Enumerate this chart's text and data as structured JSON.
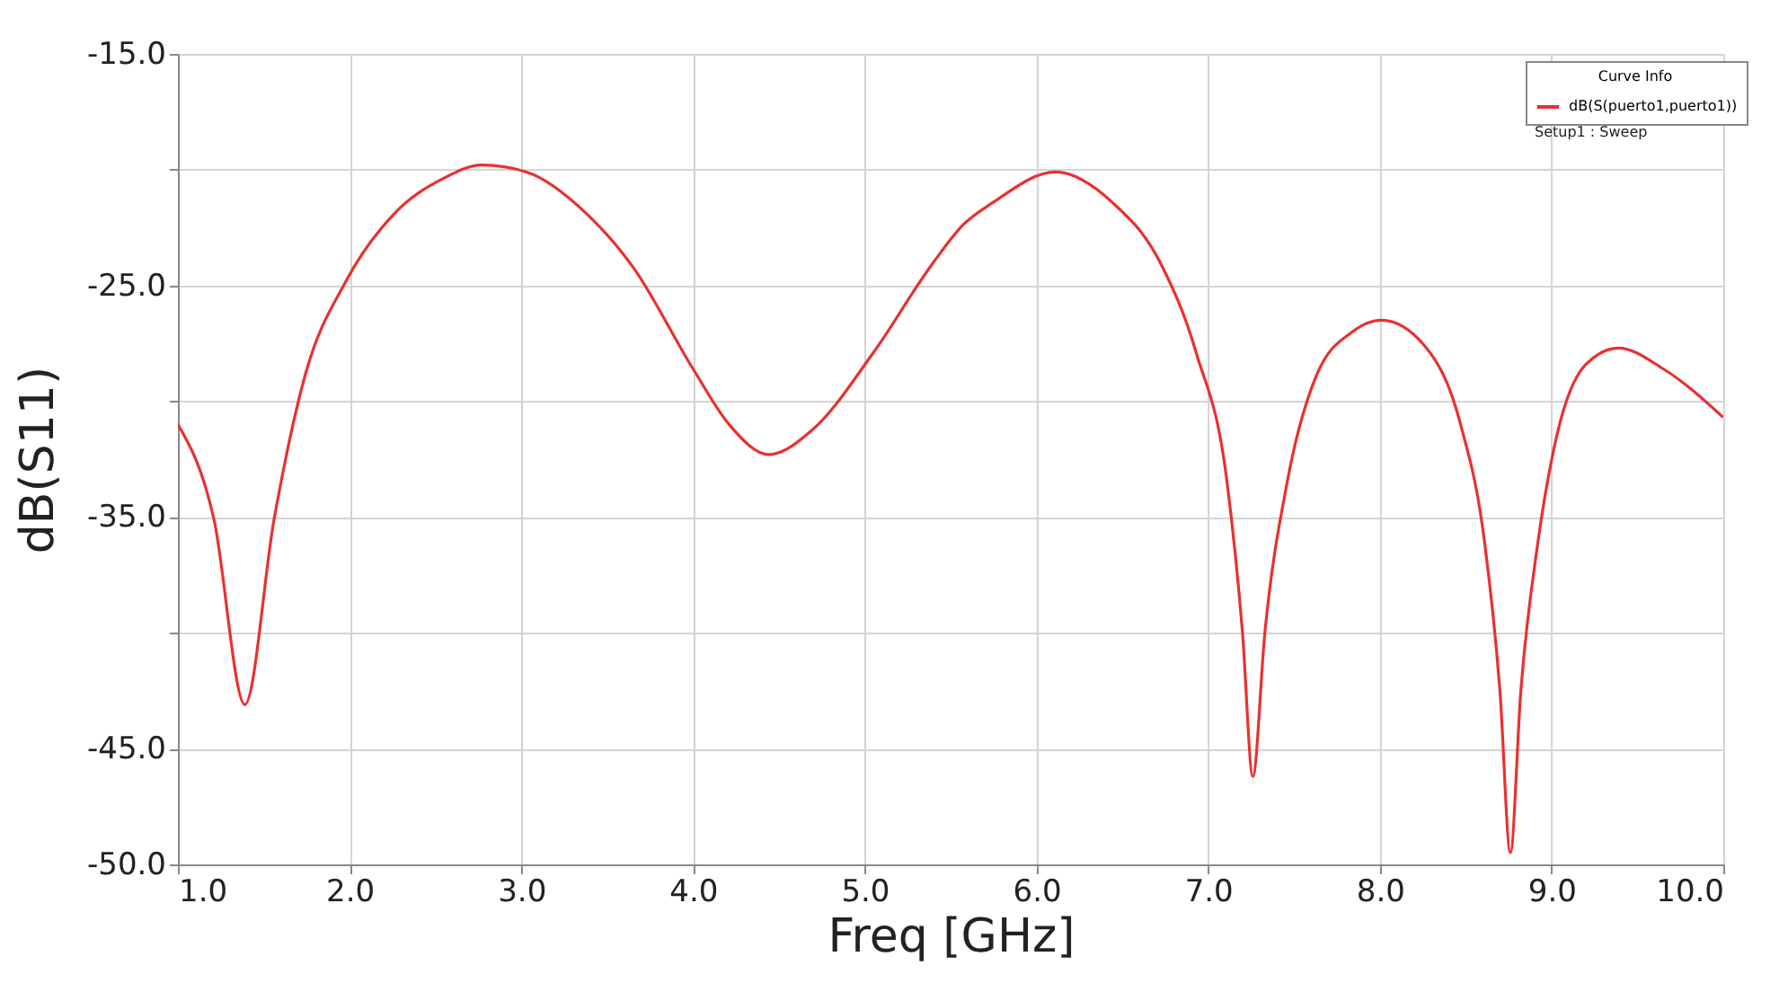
{
  "chart_data": {
    "type": "line",
    "xlabel": "Freq [GHz]",
    "ylabel": "dB(S11)",
    "legend_title": "Curve Info",
    "xlim": [
      1,
      10
    ],
    "ylim": [
      -50,
      -15
    ],
    "xticks": [
      {
        "value": 1,
        "label": "1.0"
      },
      {
        "value": 2,
        "label": "2.0"
      },
      {
        "value": 3,
        "label": "3.0"
      },
      {
        "value": 4,
        "label": "4.0"
      },
      {
        "value": 5,
        "label": "5.0"
      },
      {
        "value": 6,
        "label": "6.0"
      },
      {
        "value": 7,
        "label": "7.0"
      },
      {
        "value": 8,
        "label": "8.0"
      },
      {
        "value": 9,
        "label": "9.0"
      },
      {
        "value": 10,
        "label": "10.0"
      }
    ],
    "yticks": [
      {
        "value": -15,
        "label": "-15.0"
      },
      {
        "value": -20,
        "label": null
      },
      {
        "value": -25,
        "label": "-25.0"
      },
      {
        "value": -30,
        "label": null
      },
      {
        "value": -35,
        "label": "-35.0"
      },
      {
        "value": -40,
        "label": null
      },
      {
        "value": -45,
        "label": "-45.0"
      },
      {
        "value": -50,
        "label": "-50.0"
      }
    ],
    "grid": true,
    "legend": "top right",
    "marker": "none",
    "line_style": "solid",
    "annotations": [
      "Setup1 : Sweep"
    ],
    "series": [
      {
        "name": "dB(S(puerto1,puerto1))",
        "color": "#e8312f",
        "x": [
          1.0,
          1.21,
          1.39,
          1.56,
          1.74,
          1.98,
          2.26,
          2.54,
          2.77,
          3.03,
          3.38,
          3.65,
          4.0,
          4.21,
          4.44,
          4.7,
          5.05,
          5.4,
          5.57,
          5.75,
          6.11,
          6.44,
          6.72,
          6.93,
          7.11,
          7.2,
          7.26,
          7.33,
          7.46,
          7.63,
          7.84,
          8.01,
          8.26,
          8.47,
          8.61,
          8.7,
          8.76,
          8.82,
          8.92,
          9.03,
          9.2,
          9.39,
          9.65,
          10.0
        ],
        "values": [
          -31.0,
          -35.1,
          -43.1,
          -35.1,
          -28.9,
          -24.8,
          -21.9,
          -20.4,
          -19.8,
          -20.1,
          -21.9,
          -24.2,
          -28.6,
          -31.0,
          -32.3,
          -31.2,
          -27.9,
          -24.0,
          -22.4,
          -21.4,
          -20.1,
          -21.4,
          -24.0,
          -27.9,
          -33.5,
          -40.0,
          -46.2,
          -40.0,
          -33.5,
          -28.9,
          -27.0,
          -26.5,
          -27.6,
          -31.0,
          -36.1,
          -42.6,
          -49.5,
          -42.6,
          -36.1,
          -31.5,
          -28.4,
          -27.7,
          -28.6,
          -30.7
        ]
      }
    ]
  }
}
